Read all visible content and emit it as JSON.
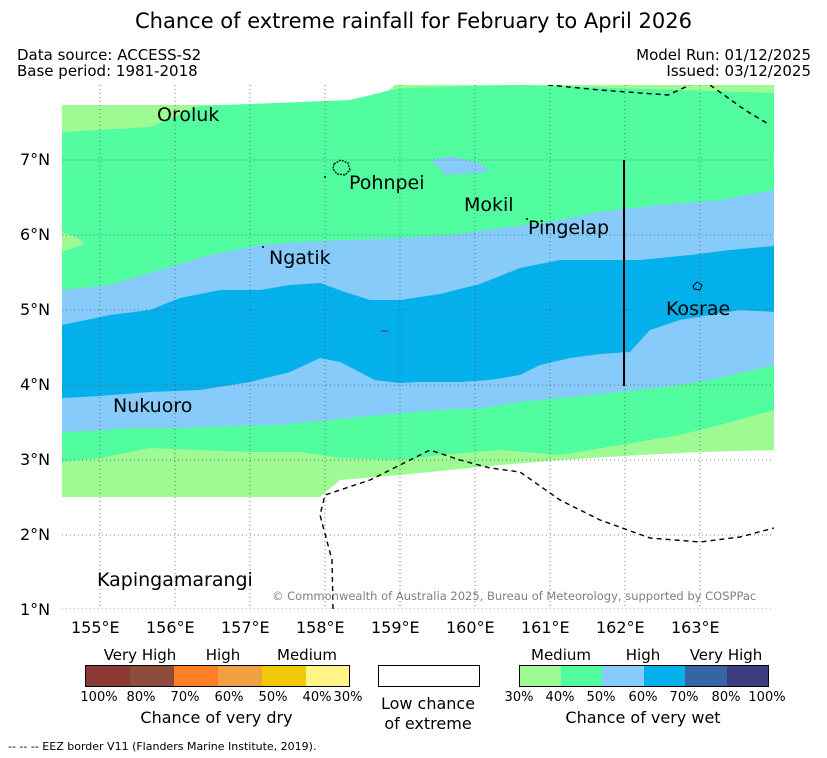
{
  "title": "Chance of extreme rainfall for February to April 2026",
  "meta": {
    "data_source": "Data source: ACCESS-S2",
    "base_period": "Base period: 1981-2018",
    "model_run": "Model Run: 01/12/2025",
    "issued": "Issued: 03/12/2025"
  },
  "map": {
    "lat_ticks": [
      "7°N",
      "6°N",
      "5°N",
      "4°N",
      "3°N",
      "2°N",
      "1°N"
    ],
    "lon_ticks": [
      "155°E",
      "156°E",
      "157°E",
      "158°E",
      "159°E",
      "160°E",
      "161°E",
      "162°E",
      "163°E"
    ],
    "places": [
      "Oroluk",
      "Pohnpei",
      "Mokil",
      "Pingelap",
      "Ngatik",
      "Kosrae",
      "Nukuoro",
      "Kapingamarangi"
    ],
    "copyright": "© Commonwealth of Australia 2025, Bureau of Meteorology, supported by COSPPac",
    "colors": {
      "wet_medium": "#9efb93",
      "wet_medium_high": "#52fda0",
      "wet_high": "#87cbfa",
      "wet_high_strong": "#03b0ec",
      "wet_very_high": "#3465a4",
      "wet_very_high_max": "#3b3c7c"
    }
  },
  "legend": {
    "dry": {
      "categories": [
        "Very High",
        "High",
        "Medium"
      ],
      "ticks": [
        "100%",
        "80%",
        "70%",
        "60%",
        "50%",
        "40%",
        "30%"
      ],
      "colors": [
        "#8b3a33",
        "#8b4c3c",
        "#ff7f27",
        "#f0a040",
        "#f0c808",
        "#fff488"
      ],
      "caption": "Chance of very dry"
    },
    "low": {
      "caption_line1": "Low chance",
      "caption_line2": "of extreme"
    },
    "wet": {
      "categories": [
        "Medium",
        "High",
        "Very High"
      ],
      "ticks": [
        "30%",
        "40%",
        "50%",
        "60%",
        "70%",
        "80%",
        "100%"
      ],
      "colors": [
        "#9efb93",
        "#52fda0",
        "#87cbfa",
        "#03b0ec",
        "#3465a4",
        "#3b3c7c"
      ],
      "caption": "Chance of very wet"
    }
  },
  "footnote": "--  --  -- EEZ border V11 (Flanders Marine Institute, 2019)."
}
